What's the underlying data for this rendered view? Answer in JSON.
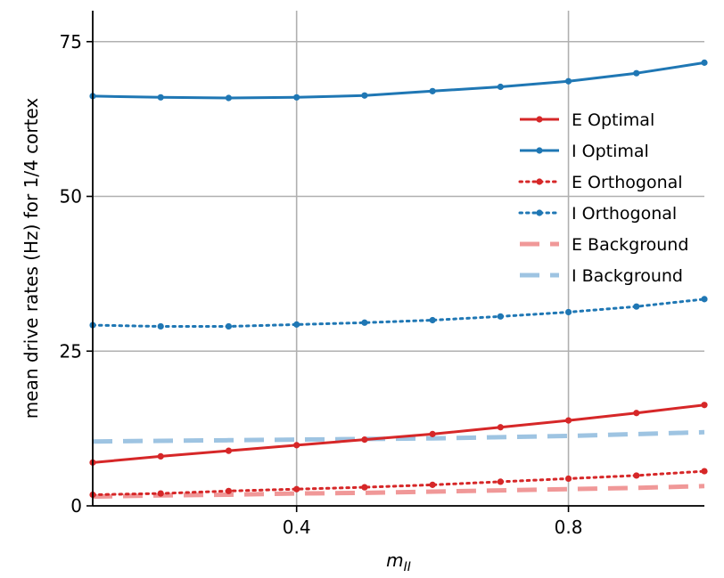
{
  "chart_data": {
    "type": "line",
    "xlabel_base": "m",
    "xlabel_sub": "II",
    "ylabel": "mean drive rates (Hz) for 1/4 cortex",
    "xlim": [
      0.1,
      1.0
    ],
    "ylim": [
      0,
      80
    ],
    "xticks": [
      0.4,
      0.8
    ],
    "xtick_labels": [
      "0.4",
      "0.8"
    ],
    "yticks": [
      0,
      25,
      50,
      75
    ],
    "ytick_labels": [
      "0",
      "25",
      "50",
      "75"
    ],
    "grid": true,
    "legend_position": "center-right",
    "x": [
      0.1,
      0.2,
      0.3,
      0.4,
      0.5,
      0.6,
      0.7,
      0.8,
      0.9,
      1.0
    ],
    "series": [
      {
        "name": "E Optimal",
        "style": "solid-marker",
        "color": "#d62728",
        "values": [
          7.0,
          8.0,
          8.9,
          9.8,
          10.7,
          11.6,
          12.7,
          13.8,
          15.0,
          16.3
        ]
      },
      {
        "name": "I Optimal",
        "style": "solid-marker",
        "color": "#1f77b4",
        "values": [
          66.2,
          66.0,
          65.9,
          66.0,
          66.3,
          67.0,
          67.7,
          68.6,
          69.9,
          71.6
        ]
      },
      {
        "name": "E Orthogonal",
        "style": "dotted-marker",
        "color": "#d62728",
        "values": [
          1.8,
          2.0,
          2.4,
          2.7,
          3.0,
          3.4,
          3.9,
          4.4,
          4.9,
          5.6
        ]
      },
      {
        "name": "I Orthogonal",
        "style": "dotted-marker",
        "color": "#1f77b4",
        "values": [
          29.2,
          29.0,
          29.0,
          29.3,
          29.6,
          30.0,
          30.6,
          31.3,
          32.2,
          33.4
        ]
      },
      {
        "name": "E Background",
        "style": "dashed",
        "color": "#f09898",
        "values": [
          1.5,
          1.7,
          1.8,
          2.0,
          2.1,
          2.3,
          2.5,
          2.7,
          2.9,
          3.2
        ]
      },
      {
        "name": "I Background",
        "style": "dashed",
        "color": "#9ec4e2",
        "values": [
          10.4,
          10.5,
          10.6,
          10.7,
          10.8,
          10.9,
          11.1,
          11.3,
          11.6,
          11.9
        ]
      }
    ]
  }
}
